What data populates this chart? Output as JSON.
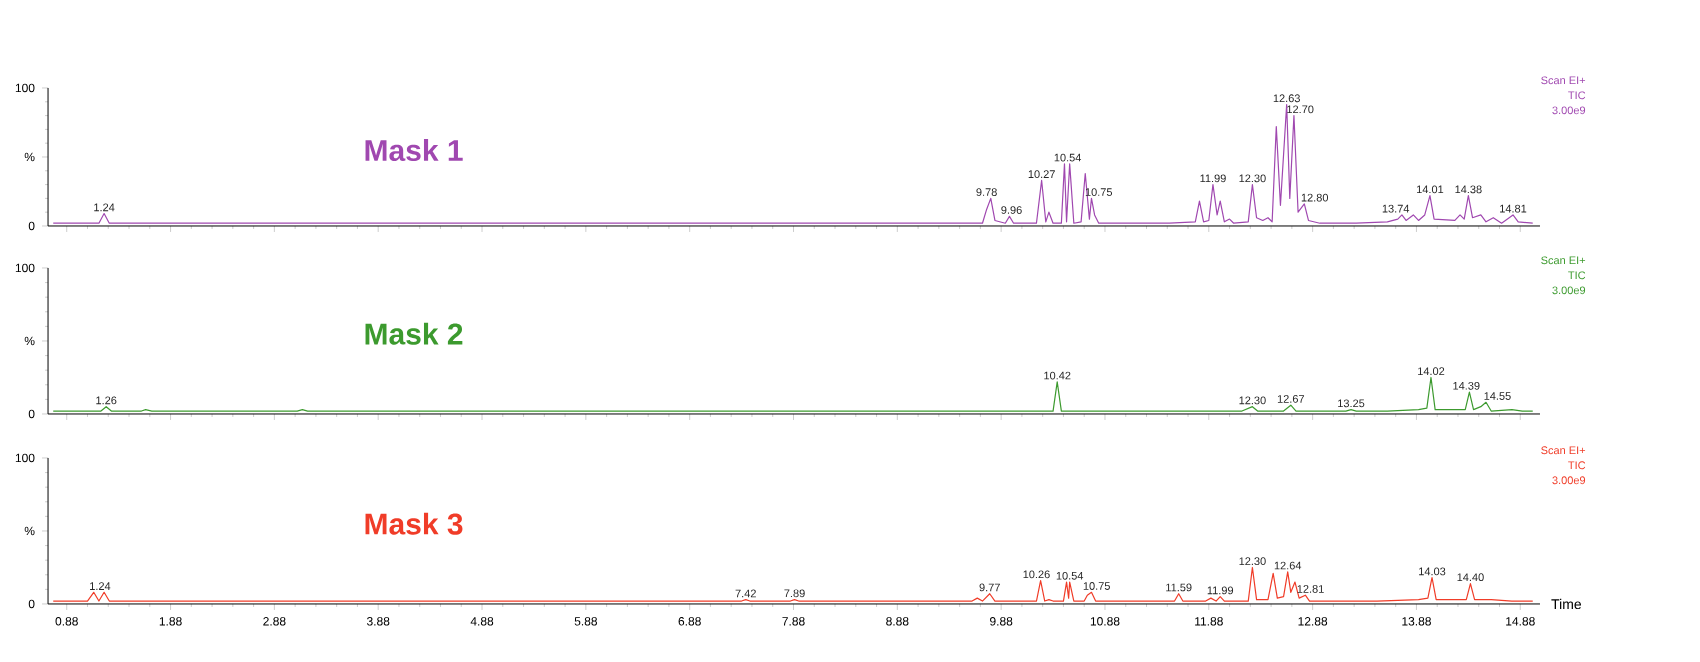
{
  "chart_data": [
    {
      "type": "line",
      "xlim": [
        0.7,
        15.07
      ],
      "ylim": [
        0,
        100
      ],
      "tick_labels": "y",
      "xticks": [
        0.88,
        1.88,
        2.88,
        3.88,
        4.88,
        5.88,
        6.88,
        7.88,
        8.88,
        9.88,
        10.88,
        11.88,
        12.88,
        13.88,
        14.88
      ],
      "yticks": [
        {
          "value": 0,
          "label": "0"
        },
        {
          "value": 50,
          "label": "%"
        },
        {
          "value": 100,
          "label": "100"
        }
      ],
      "x": [
        0.75,
        1.19,
        1.24,
        1.29,
        3.0,
        6.0,
        9.0,
        9.7,
        9.74,
        9.78,
        9.82,
        9.92,
        9.96,
        10.0,
        10.22,
        10.27,
        10.31,
        10.34,
        10.38,
        10.46,
        10.49,
        10.51,
        10.54,
        10.58,
        10.65,
        10.69,
        10.73,
        10.75,
        10.78,
        10.82,
        11.0,
        11.5,
        11.75,
        11.79,
        11.83,
        11.88,
        11.92,
        11.96,
        11.99,
        12.03,
        12.08,
        12.12,
        12.26,
        12.3,
        12.34,
        12.4,
        12.45,
        12.49,
        12.53,
        12.57,
        12.63,
        12.66,
        12.7,
        12.74,
        12.8,
        12.84,
        12.95,
        13.3,
        13.6,
        13.7,
        13.74,
        13.78,
        13.85,
        13.9,
        13.96,
        14.01,
        14.05,
        14.25,
        14.3,
        14.34,
        14.38,
        14.42,
        14.5,
        14.55,
        14.62,
        14.7,
        14.81,
        14.86,
        15.0
      ],
      "series": [
        {
          "name": "Mask 1",
          "color": "#a048b0",
          "values": [
            2,
            2,
            9,
            2,
            2,
            2,
            2,
            2,
            12,
            20,
            4,
            2,
            7,
            2,
            2,
            33,
            3,
            10,
            2,
            2,
            45,
            3,
            45,
            2,
            3,
            38,
            5,
            20,
            8,
            2,
            2,
            2,
            3,
            18,
            3,
            4,
            30,
            8,
            18,
            3,
            5,
            2,
            3,
            30,
            6,
            4,
            6,
            3,
            72,
            15,
            88,
            20,
            80,
            10,
            16,
            4,
            2,
            2,
            3,
            5,
            8,
            4,
            8,
            4,
            8,
            22,
            5,
            4,
            8,
            5,
            22,
            6,
            8,
            3,
            6,
            2,
            8,
            3,
            2
          ]
        }
      ],
      "annotations": [
        "Scan EI+",
        "TIC",
        "3.00e9",
        {
          "text": "1.24",
          "x": 1.24,
          "y": 9
        },
        {
          "text": "9.78",
          "x": 9.74,
          "y": 20
        },
        {
          "text": "9.96",
          "x": 9.98,
          "y": 7
        },
        {
          "text": "10.27",
          "x": 10.27,
          "y": 33
        },
        {
          "text": "10.54",
          "x": 10.52,
          "y": 45
        },
        {
          "text": "10.75",
          "x": 10.82,
          "y": 20
        },
        {
          "text": "11.99",
          "x": 11.92,
          "y": 30
        },
        {
          "text": "12.30",
          "x": 12.3,
          "y": 30
        },
        {
          "text": "12.63",
          "x": 12.63,
          "y": 88
        },
        {
          "text": "12.70",
          "x": 12.76,
          "y": 80
        },
        {
          "text": "12.80",
          "x": 12.9,
          "y": 16
        },
        {
          "text": "13.74",
          "x": 13.68,
          "y": 8
        },
        {
          "text": "14.01",
          "x": 14.01,
          "y": 22
        },
        {
          "text": "14.38",
          "x": 14.38,
          "y": 22
        },
        {
          "text": "14.81",
          "x": 14.81,
          "y": 8
        }
      ]
    },
    {
      "type": "line",
      "xlim": [
        0.7,
        15.07
      ],
      "ylim": [
        0,
        100
      ],
      "tick_labels": "y",
      "xticks": [
        0.88,
        1.88,
        2.88,
        3.88,
        4.88,
        5.88,
        6.88,
        7.88,
        8.88,
        9.88,
        10.88,
        11.88,
        12.88,
        13.88,
        14.88
      ],
      "yticks": [
        {
          "value": 0,
          "label": "0"
        },
        {
          "value": 50,
          "label": "%"
        },
        {
          "value": 100,
          "label": "100"
        }
      ],
      "x": [
        0.75,
        1.21,
        1.26,
        1.31,
        1.6,
        1.64,
        1.7,
        3.1,
        3.15,
        3.2,
        7.0,
        7.3,
        8.4,
        9.0,
        9.5,
        10.38,
        10.42,
        10.46,
        11.0,
        11.6,
        12.2,
        12.3,
        12.35,
        12.6,
        12.67,
        12.72,
        12.85,
        13.2,
        13.25,
        13.3,
        13.6,
        13.9,
        13.98,
        14.02,
        14.06,
        14.2,
        14.35,
        14.39,
        14.43,
        14.5,
        14.55,
        14.6,
        14.8,
        14.9,
        15.0
      ],
      "series": [
        {
          "name": "Mask 2",
          "color": "#3c9a2e",
          "values": [
            2,
            2,
            5,
            2,
            2,
            3,
            2,
            2,
            3,
            2,
            2,
            2,
            2,
            2,
            2,
            2,
            22,
            2,
            2,
            2,
            2,
            5,
            2,
            2,
            6,
            2,
            2,
            2,
            3,
            2,
            2,
            3,
            4,
            25,
            3,
            3,
            3,
            15,
            3,
            5,
            8,
            2,
            3,
            2,
            2
          ]
        }
      ],
      "annotations": [
        "Scan EI+",
        "TIC",
        "3.00e9",
        {
          "text": "1.26",
          "x": 1.26,
          "y": 5
        },
        {
          "text": "10.42",
          "x": 10.42,
          "y": 22
        },
        {
          "text": "12.30",
          "x": 12.3,
          "y": 5
        },
        {
          "text": "12.67",
          "x": 12.67,
          "y": 6
        },
        {
          "text": "13.25",
          "x": 13.25,
          "y": 3
        },
        {
          "text": "14.02",
          "x": 14.02,
          "y": 25
        },
        {
          "text": "14.39",
          "x": 14.36,
          "y": 15
        },
        {
          "text": "14.55",
          "x": 14.66,
          "y": 8
        }
      ]
    },
    {
      "type": "line",
      "xlim": [
        0.7,
        15.07
      ],
      "ylim": [
        0,
        100
      ],
      "xlabel": "Time",
      "xticks": [
        0.88,
        1.88,
        2.88,
        3.88,
        4.88,
        5.88,
        6.88,
        7.88,
        8.88,
        9.88,
        10.88,
        11.88,
        12.88,
        13.88,
        14.88
      ],
      "yticks": [
        {
          "value": 0,
          "label": "0"
        },
        {
          "value": 50,
          "label": "%"
        },
        {
          "value": 100,
          "label": "100"
        }
      ],
      "x": [
        0.75,
        1.08,
        1.14,
        1.19,
        1.24,
        1.29,
        3.0,
        6.0,
        7.38,
        7.42,
        7.46,
        7.85,
        7.89,
        7.93,
        8.2,
        9.0,
        9.6,
        9.65,
        9.7,
        9.77,
        9.82,
        10.22,
        10.26,
        10.3,
        10.34,
        10.38,
        10.48,
        10.51,
        10.53,
        10.54,
        10.58,
        10.68,
        10.71,
        10.75,
        10.79,
        11.0,
        11.55,
        11.59,
        11.63,
        11.85,
        11.9,
        11.95,
        11.99,
        12.03,
        12.26,
        12.3,
        12.34,
        12.45,
        12.5,
        12.54,
        12.6,
        12.64,
        12.67,
        12.71,
        12.75,
        12.81,
        12.85,
        13.0,
        13.5,
        13.9,
        13.99,
        14.03,
        14.07,
        14.2,
        14.36,
        14.4,
        14.44,
        14.6,
        14.8,
        15.0
      ],
      "series": [
        {
          "name": "Mask 3",
          "color": "#f03c28",
          "values": [
            2,
            2,
            8,
            2,
            8,
            2,
            2,
            2,
            2,
            3,
            2,
            2,
            3,
            2,
            2,
            2,
            2,
            4,
            2,
            7,
            2,
            2,
            16,
            2,
            3,
            2,
            2,
            15,
            4,
            15,
            2,
            2,
            6,
            8,
            2,
            2,
            2,
            7,
            2,
            2,
            4,
            2,
            5,
            2,
            2,
            25,
            3,
            3,
            21,
            4,
            5,
            22,
            8,
            15,
            4,
            6,
            2,
            2,
            2,
            3,
            4,
            18,
            3,
            3,
            3,
            14,
            3,
            3,
            2,
            2
          ]
        }
      ],
      "annotations": [
        "Scan EI+",
        "TIC",
        "3.00e9",
        {
          "text": "1.24",
          "x": 1.2,
          "y": 8
        },
        {
          "text": "7.42",
          "x": 7.42,
          "y": 3
        },
        {
          "text": "7.89",
          "x": 7.89,
          "y": 3
        },
        {
          "text": "9.77",
          "x": 9.77,
          "y": 7
        },
        {
          "text": "10.26",
          "x": 10.22,
          "y": 16
        },
        {
          "text": "10.54",
          "x": 10.54,
          "y": 15
        },
        {
          "text": "10.75",
          "x": 10.8,
          "y": 8
        },
        {
          "text": "11.59",
          "x": 11.59,
          "y": 7
        },
        {
          "text": "11.99",
          "x": 11.99,
          "y": 5
        },
        {
          "text": "12.30",
          "x": 12.3,
          "y": 25
        },
        {
          "text": "12.64",
          "x": 12.64,
          "y": 22
        },
        {
          "text": "12.81",
          "x": 12.86,
          "y": 6
        },
        {
          "text": "14.03",
          "x": 14.03,
          "y": 18
        },
        {
          "text": "14.40",
          "x": 14.4,
          "y": 14
        }
      ]
    }
  ]
}
